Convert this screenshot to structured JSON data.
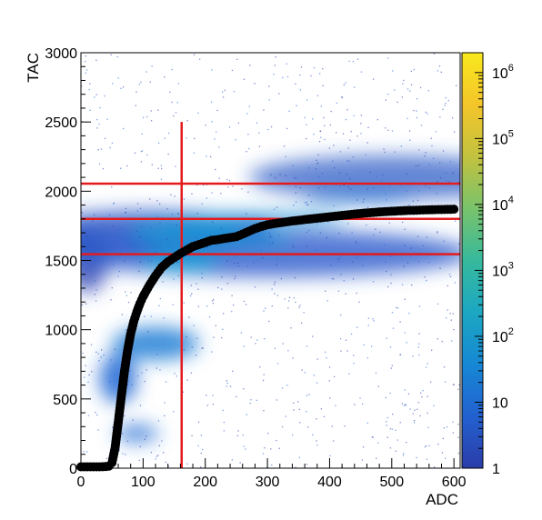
{
  "chart_data": {
    "type": "heatmap",
    "title": "",
    "xlabel": "ADC",
    "ylabel": "TAC",
    "xlim": [
      0,
      610
    ],
    "ylim": [
      0,
      3000
    ],
    "x_ticks": [
      "0",
      "100",
      "200",
      "300",
      "400",
      "500",
      "600"
    ],
    "y_ticks": [
      "0",
      "500",
      "1000",
      "1500",
      "2000",
      "2500",
      "3000"
    ],
    "colorbar": {
      "scale": "log",
      "range": [
        1,
        2000000
      ],
      "tick_labels": [
        {
          "base": "1",
          "exp": "",
          "value": 1
        },
        {
          "base": "10",
          "exp": "",
          "value": 10
        },
        {
          "base": "10",
          "exp": "2",
          "value": 100
        },
        {
          "base": "10",
          "exp": "3",
          "value": 1000
        },
        {
          "base": "10",
          "exp": "4",
          "value": 10000
        },
        {
          "base": "10",
          "exp": "5",
          "value": 100000
        },
        {
          "base": "10",
          "exp": "6",
          "value": 1000000
        }
      ],
      "colors": [
        "#2b3ca8",
        "#2361d0",
        "#1688d4",
        "#1ca7c2",
        "#37b99c",
        "#79c36b",
        "#c2c23f",
        "#f4c52a",
        "#f9e81d"
      ]
    },
    "profile_color": "#000000",
    "profile": [
      {
        "x": 0,
        "y": 10
      },
      {
        "x": 10,
        "y": 10
      },
      {
        "x": 20,
        "y": 10
      },
      {
        "x": 30,
        "y": 10
      },
      {
        "x": 40,
        "y": 12
      },
      {
        "x": 45,
        "y": 15
      },
      {
        "x": 50,
        "y": 40
      },
      {
        "x": 55,
        "y": 150
      },
      {
        "x": 60,
        "y": 330
      },
      {
        "x": 65,
        "y": 520
      },
      {
        "x": 70,
        "y": 700
      },
      {
        "x": 75,
        "y": 850
      },
      {
        "x": 80,
        "y": 970
      },
      {
        "x": 85,
        "y": 1060
      },
      {
        "x": 90,
        "y": 1130
      },
      {
        "x": 95,
        "y": 1190
      },
      {
        "x": 100,
        "y": 1240
      },
      {
        "x": 110,
        "y": 1320
      },
      {
        "x": 120,
        "y": 1390
      },
      {
        "x": 130,
        "y": 1450
      },
      {
        "x": 140,
        "y": 1490
      },
      {
        "x": 150,
        "y": 1520
      },
      {
        "x": 160,
        "y": 1550
      },
      {
        "x": 170,
        "y": 1575
      },
      {
        "x": 180,
        "y": 1600
      },
      {
        "x": 190,
        "y": 1615
      },
      {
        "x": 200,
        "y": 1630
      },
      {
        "x": 210,
        "y": 1645
      },
      {
        "x": 220,
        "y": 1650
      },
      {
        "x": 230,
        "y": 1658
      },
      {
        "x": 240,
        "y": 1665
      },
      {
        "x": 250,
        "y": 1672
      },
      {
        "x": 260,
        "y": 1690
      },
      {
        "x": 270,
        "y": 1710
      },
      {
        "x": 280,
        "y": 1730
      },
      {
        "x": 290,
        "y": 1745
      },
      {
        "x": 300,
        "y": 1758
      },
      {
        "x": 320,
        "y": 1772
      },
      {
        "x": 340,
        "y": 1785
      },
      {
        "x": 360,
        "y": 1795
      },
      {
        "x": 380,
        "y": 1805
      },
      {
        "x": 400,
        "y": 1815
      },
      {
        "x": 420,
        "y": 1825
      },
      {
        "x": 440,
        "y": 1835
      },
      {
        "x": 460,
        "y": 1843
      },
      {
        "x": 480,
        "y": 1850
      },
      {
        "x": 500,
        "y": 1855
      },
      {
        "x": 520,
        "y": 1860
      },
      {
        "x": 540,
        "y": 1863
      },
      {
        "x": 560,
        "y": 1866
      },
      {
        "x": 580,
        "y": 1868
      },
      {
        "x": 600,
        "y": 1870
      }
    ],
    "cut_lines_color": "#e41a1c",
    "vertical_lines": [
      {
        "x": 162,
        "y_from": 0,
        "y_to": 2500
      }
    ],
    "horizontal_lines": [
      {
        "y": 1545,
        "x_from": 0,
        "x_to": 610
      },
      {
        "y": 1800,
        "x_from": 0,
        "x_to": 610
      },
      {
        "y": 2055,
        "x_from": 0,
        "x_to": 610
      }
    ]
  }
}
